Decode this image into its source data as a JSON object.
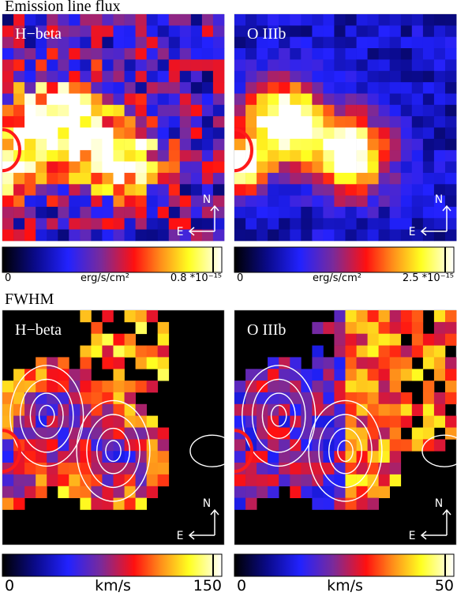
{
  "sections": [
    {
      "title": "Emission line flux",
      "panels": [
        {
          "label": "H−beta",
          "compass": {
            "north": "N",
            "east": "E"
          },
          "colorbar": {
            "min_label": "0",
            "unit": "erg/s/cm²",
            "max_label": "0.8 *10⁻¹⁵"
          }
        },
        {
          "label": "O IIIb",
          "compass": {
            "north": "N",
            "east": "E"
          },
          "colorbar": {
            "min_label": "0",
            "unit": "erg/s/cm²",
            "max_label": "2.5 *10⁻¹⁵"
          }
        }
      ]
    },
    {
      "title": "FWHM",
      "panels": [
        {
          "label": "H−beta",
          "compass": {
            "north": "N",
            "east": "E"
          },
          "colorbar": {
            "min_label": "0",
            "unit": "km/s",
            "max_label": "150"
          }
        },
        {
          "label": "O IIIb",
          "compass": {
            "north": "N",
            "east": "E"
          },
          "colorbar": {
            "min_label": "0",
            "unit": "km/s",
            "max_label": "50"
          }
        }
      ]
    }
  ]
}
